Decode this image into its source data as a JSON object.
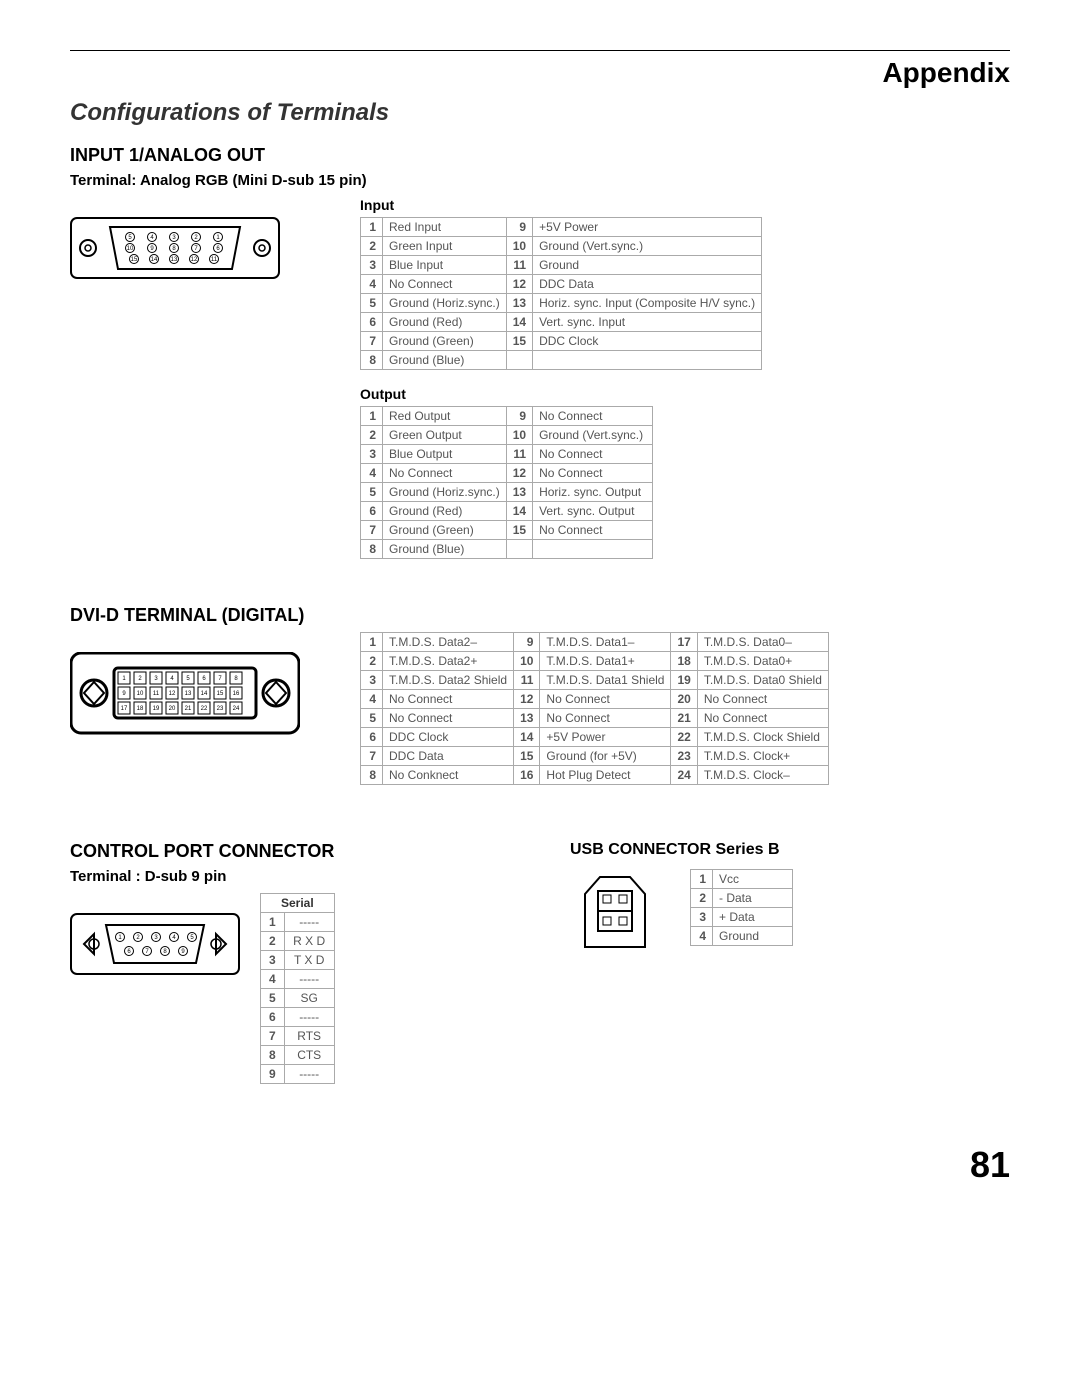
{
  "page": {
    "header": "Appendix",
    "title": "Configurations of Terminals",
    "pageNumber": "81"
  },
  "section1": {
    "heading": "INPUT 1/ANALOG OUT",
    "sub": "Terminal: Analog RGB (Mini D-sub 15 pin)",
    "inputLabel": "Input",
    "outputLabel": "Output",
    "inputPins": {
      "c1": [
        {
          "n": "1",
          "v": "Red Input"
        },
        {
          "n": "2",
          "v": "Green Input"
        },
        {
          "n": "3",
          "v": "Blue Input"
        },
        {
          "n": "4",
          "v": "No Connect"
        },
        {
          "n": "5",
          "v": "Ground (Horiz.sync.)"
        },
        {
          "n": "6",
          "v": "Ground (Red)"
        },
        {
          "n": "7",
          "v": "Ground (Green)"
        },
        {
          "n": "8",
          "v": "Ground (Blue)"
        }
      ],
      "c2": [
        {
          "n": "9",
          "v": "+5V Power"
        },
        {
          "n": "10",
          "v": "Ground (Vert.sync.)"
        },
        {
          "n": "11",
          "v": "Ground"
        },
        {
          "n": "12",
          "v": "DDC Data"
        },
        {
          "n": "13",
          "v": "Horiz. sync. Input (Composite H/V sync.)"
        },
        {
          "n": "14",
          "v": "Vert. sync. Input"
        },
        {
          "n": "15",
          "v": "DDC Clock"
        }
      ]
    },
    "outputPins": {
      "c1": [
        {
          "n": "1",
          "v": "Red Output"
        },
        {
          "n": "2",
          "v": "Green Output"
        },
        {
          "n": "3",
          "v": "Blue Output"
        },
        {
          "n": "4",
          "v": "No Connect"
        },
        {
          "n": "5",
          "v": "Ground (Horiz.sync.)"
        },
        {
          "n": "6",
          "v": "Ground (Red)"
        },
        {
          "n": "7",
          "v": "Ground (Green)"
        },
        {
          "n": "8",
          "v": "Ground (Blue)"
        }
      ],
      "c2": [
        {
          "n": "9",
          "v": "No Connect"
        },
        {
          "n": "10",
          "v": "Ground (Vert.sync.)"
        },
        {
          "n": "11",
          "v": "No Connect"
        },
        {
          "n": "12",
          "v": "No Connect"
        },
        {
          "n": "13",
          "v": "Horiz. sync. Output"
        },
        {
          "n": "14",
          "v": "Vert. sync. Output"
        },
        {
          "n": "15",
          "v": "No Connect"
        }
      ]
    }
  },
  "section2": {
    "heading": "DVI-D TERMINAL (DIGITAL)",
    "pins": {
      "c1": [
        {
          "n": "1",
          "v": "T.M.D.S. Data2–"
        },
        {
          "n": "2",
          "v": "T.M.D.S. Data2+"
        },
        {
          "n": "3",
          "v": "T.M.D.S. Data2 Shield"
        },
        {
          "n": "4",
          "v": "No Connect"
        },
        {
          "n": "5",
          "v": "No Connect"
        },
        {
          "n": "6",
          "v": "DDC Clock"
        },
        {
          "n": "7",
          "v": "DDC Data"
        },
        {
          "n": "8",
          "v": "No Conknect"
        }
      ],
      "c2": [
        {
          "n": "9",
          "v": "T.M.D.S. Data1–"
        },
        {
          "n": "10",
          "v": "T.M.D.S. Data1+"
        },
        {
          "n": "11",
          "v": "T.M.D.S. Data1 Shield"
        },
        {
          "n": "12",
          "v": "No Connect"
        },
        {
          "n": "13",
          "v": "No Connect"
        },
        {
          "n": "14",
          "v": "+5V Power"
        },
        {
          "n": "15",
          "v": "Ground (for +5V)"
        },
        {
          "n": "16",
          "v": "Hot Plug Detect"
        }
      ],
      "c3": [
        {
          "n": "17",
          "v": "T.M.D.S. Data0–"
        },
        {
          "n": "18",
          "v": "T.M.D.S. Data0+"
        },
        {
          "n": "19",
          "v": "T.M.D.S. Data0 Shield"
        },
        {
          "n": "20",
          "v": "No Connect"
        },
        {
          "n": "21",
          "v": "No Connect"
        },
        {
          "n": "22",
          "v": "T.M.D.S. Clock Shield"
        },
        {
          "n": "23",
          "v": "T.M.D.S. Clock+"
        },
        {
          "n": "24",
          "v": "T.M.D.S. Clock–"
        }
      ]
    }
  },
  "section3": {
    "heading": "CONTROL PORT CONNECTOR",
    "sub": "Terminal : D-sub 9 pin",
    "serialLabel": "Serial",
    "pins": [
      {
        "n": "1",
        "v": "-----"
      },
      {
        "n": "2",
        "v": "R X D"
      },
      {
        "n": "3",
        "v": "T X D"
      },
      {
        "n": "4",
        "v": "-----"
      },
      {
        "n": "5",
        "v": "SG"
      },
      {
        "n": "6",
        "v": "-----"
      },
      {
        "n": "7",
        "v": "RTS"
      },
      {
        "n": "8",
        "v": "CTS"
      },
      {
        "n": "9",
        "v": "-----"
      }
    ]
  },
  "section4": {
    "heading": "USB CONNECTOR Series B",
    "pins": [
      {
        "n": "1",
        "v": "Vcc"
      },
      {
        "n": "2",
        "v": "- Data"
      },
      {
        "n": "3",
        "v": "+ Data"
      },
      {
        "n": "4",
        "v": "Ground"
      }
    ]
  },
  "style": {
    "borderColor": "#aaaaaa",
    "textColor": "#555555",
    "fontSizeTable": 12
  }
}
